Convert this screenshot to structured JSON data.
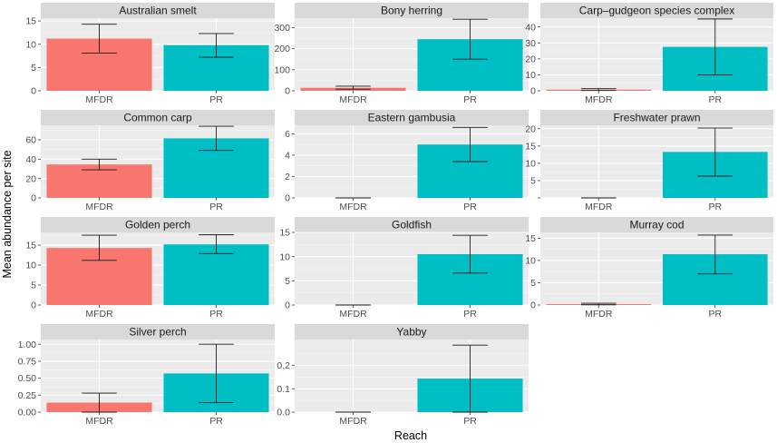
{
  "chart_data": {
    "type": "bar",
    "xlabel": "Reach",
    "ylabel": "Mean abundance per site",
    "categories": [
      "MFDR",
      "PR"
    ],
    "colors": {
      "MFDR": "#F8766D",
      "PR": "#00BFC4",
      "panel_bg": "#EBEBEB",
      "strip_bg": "#D9D9D9",
      "grid": "#FFFFFF"
    },
    "grid": true,
    "panels": [
      {
        "title": "Australian smelt",
        "ylim": [
          0,
          15.6
        ],
        "yticks": [
          0,
          5,
          10,
          15
        ],
        "tick_labels": [
          "0",
          "5",
          "10",
          "15"
        ],
        "values": [
          11.2,
          9.8
        ],
        "err_low": [
          8.1,
          7.2
        ],
        "err_high": [
          14.3,
          12.3
        ]
      },
      {
        "title": "Bony herring",
        "ylim": [
          0,
          345
        ],
        "yticks": [
          0,
          100,
          200,
          300
        ],
        "tick_labels": [
          "0",
          "100",
          "200",
          "300"
        ],
        "values": [
          14,
          245
        ],
        "err_low": [
          8,
          150
        ],
        "err_high": [
          22,
          340
        ]
      },
      {
        "title": "Carp–gudgeon species complex",
        "ylim": [
          0,
          45.5
        ],
        "yticks": [
          0,
          10,
          20,
          30,
          40
        ],
        "tick_labels": [
          "0",
          "10",
          "20",
          "30",
          "40"
        ],
        "values": [
          0.7,
          27.5
        ],
        "err_low": [
          0.2,
          10
        ],
        "err_high": [
          1.3,
          45
        ]
      },
      {
        "title": "Common carp",
        "ylim": [
          0,
          75
        ],
        "yticks": [
          0,
          20,
          40,
          60
        ],
        "tick_labels": [
          "0",
          "20",
          "40",
          "60"
        ],
        "values": [
          34.5,
          61.5
        ],
        "err_low": [
          29,
          49
        ],
        "err_high": [
          40,
          74
        ]
      },
      {
        "title": "Eastern gambusia",
        "ylim": [
          0,
          6.8
        ],
        "yticks": [
          0,
          2,
          4,
          6
        ],
        "tick_labels": [
          "0",
          "2",
          "4",
          "6"
        ],
        "values": [
          0,
          5
        ],
        "err_low": [
          0,
          3.4
        ],
        "err_high": [
          0,
          6.6
        ]
      },
      {
        "title": "Freshwater prawn",
        "ylim": [
          0,
          21
        ],
        "yticks": [
          0,
          5,
          10,
          15,
          20
        ],
        "tick_labels": [
          "",
          "5",
          "10",
          "15",
          "20"
        ],
        "values": [
          0,
          13.3
        ],
        "err_low": [
          0,
          6.3
        ],
        "err_high": [
          0,
          20.2
        ]
      },
      {
        "title": "Golden perch",
        "ylim": [
          0,
          18.2
        ],
        "yticks": [
          0,
          5,
          10,
          15
        ],
        "tick_labels": [
          "0",
          "5",
          "10",
          "15"
        ],
        "values": [
          14.3,
          15.2
        ],
        "err_low": [
          11.2,
          12.9
        ],
        "err_high": [
          17.5,
          17.6
        ]
      },
      {
        "title": "Goldfish",
        "ylim": [
          0,
          15
        ],
        "yticks": [
          0,
          5,
          10,
          15
        ],
        "tick_labels": [
          "0",
          "5",
          "10",
          "15"
        ],
        "values": [
          0,
          10.5
        ],
        "err_low": [
          0,
          6.6
        ],
        "err_high": [
          0,
          14.4
        ]
      },
      {
        "title": "Murray cod",
        "ylim": [
          0,
          16.3
        ],
        "yticks": [
          0,
          5,
          10,
          15
        ],
        "tick_labels": [
          "0",
          "5",
          "10",
          "15"
        ],
        "values": [
          0.2,
          11.4
        ],
        "err_low": [
          0.05,
          7
        ],
        "err_high": [
          0.4,
          15.7
        ]
      },
      {
        "title": "Silver perch",
        "ylim": [
          0,
          1.07
        ],
        "yticks": [
          0,
          0.25,
          0.5,
          0.75,
          1.0
        ],
        "tick_labels": [
          "0.00",
          "0.25",
          "0.50",
          "0.75",
          "1.00"
        ],
        "values": [
          0.14,
          0.57
        ],
        "err_low": [
          0,
          0.14
        ],
        "err_high": [
          0.28,
          1.0
        ]
      },
      {
        "title": "Yabby",
        "ylim": [
          0,
          0.31
        ],
        "yticks": [
          0,
          0.1,
          0.2
        ],
        "tick_labels": [
          "0.0",
          "0.1",
          "0.2"
        ],
        "values": [
          0,
          0.143
        ],
        "err_low": [
          0,
          0
        ],
        "err_high": [
          0,
          0.286
        ]
      }
    ]
  }
}
